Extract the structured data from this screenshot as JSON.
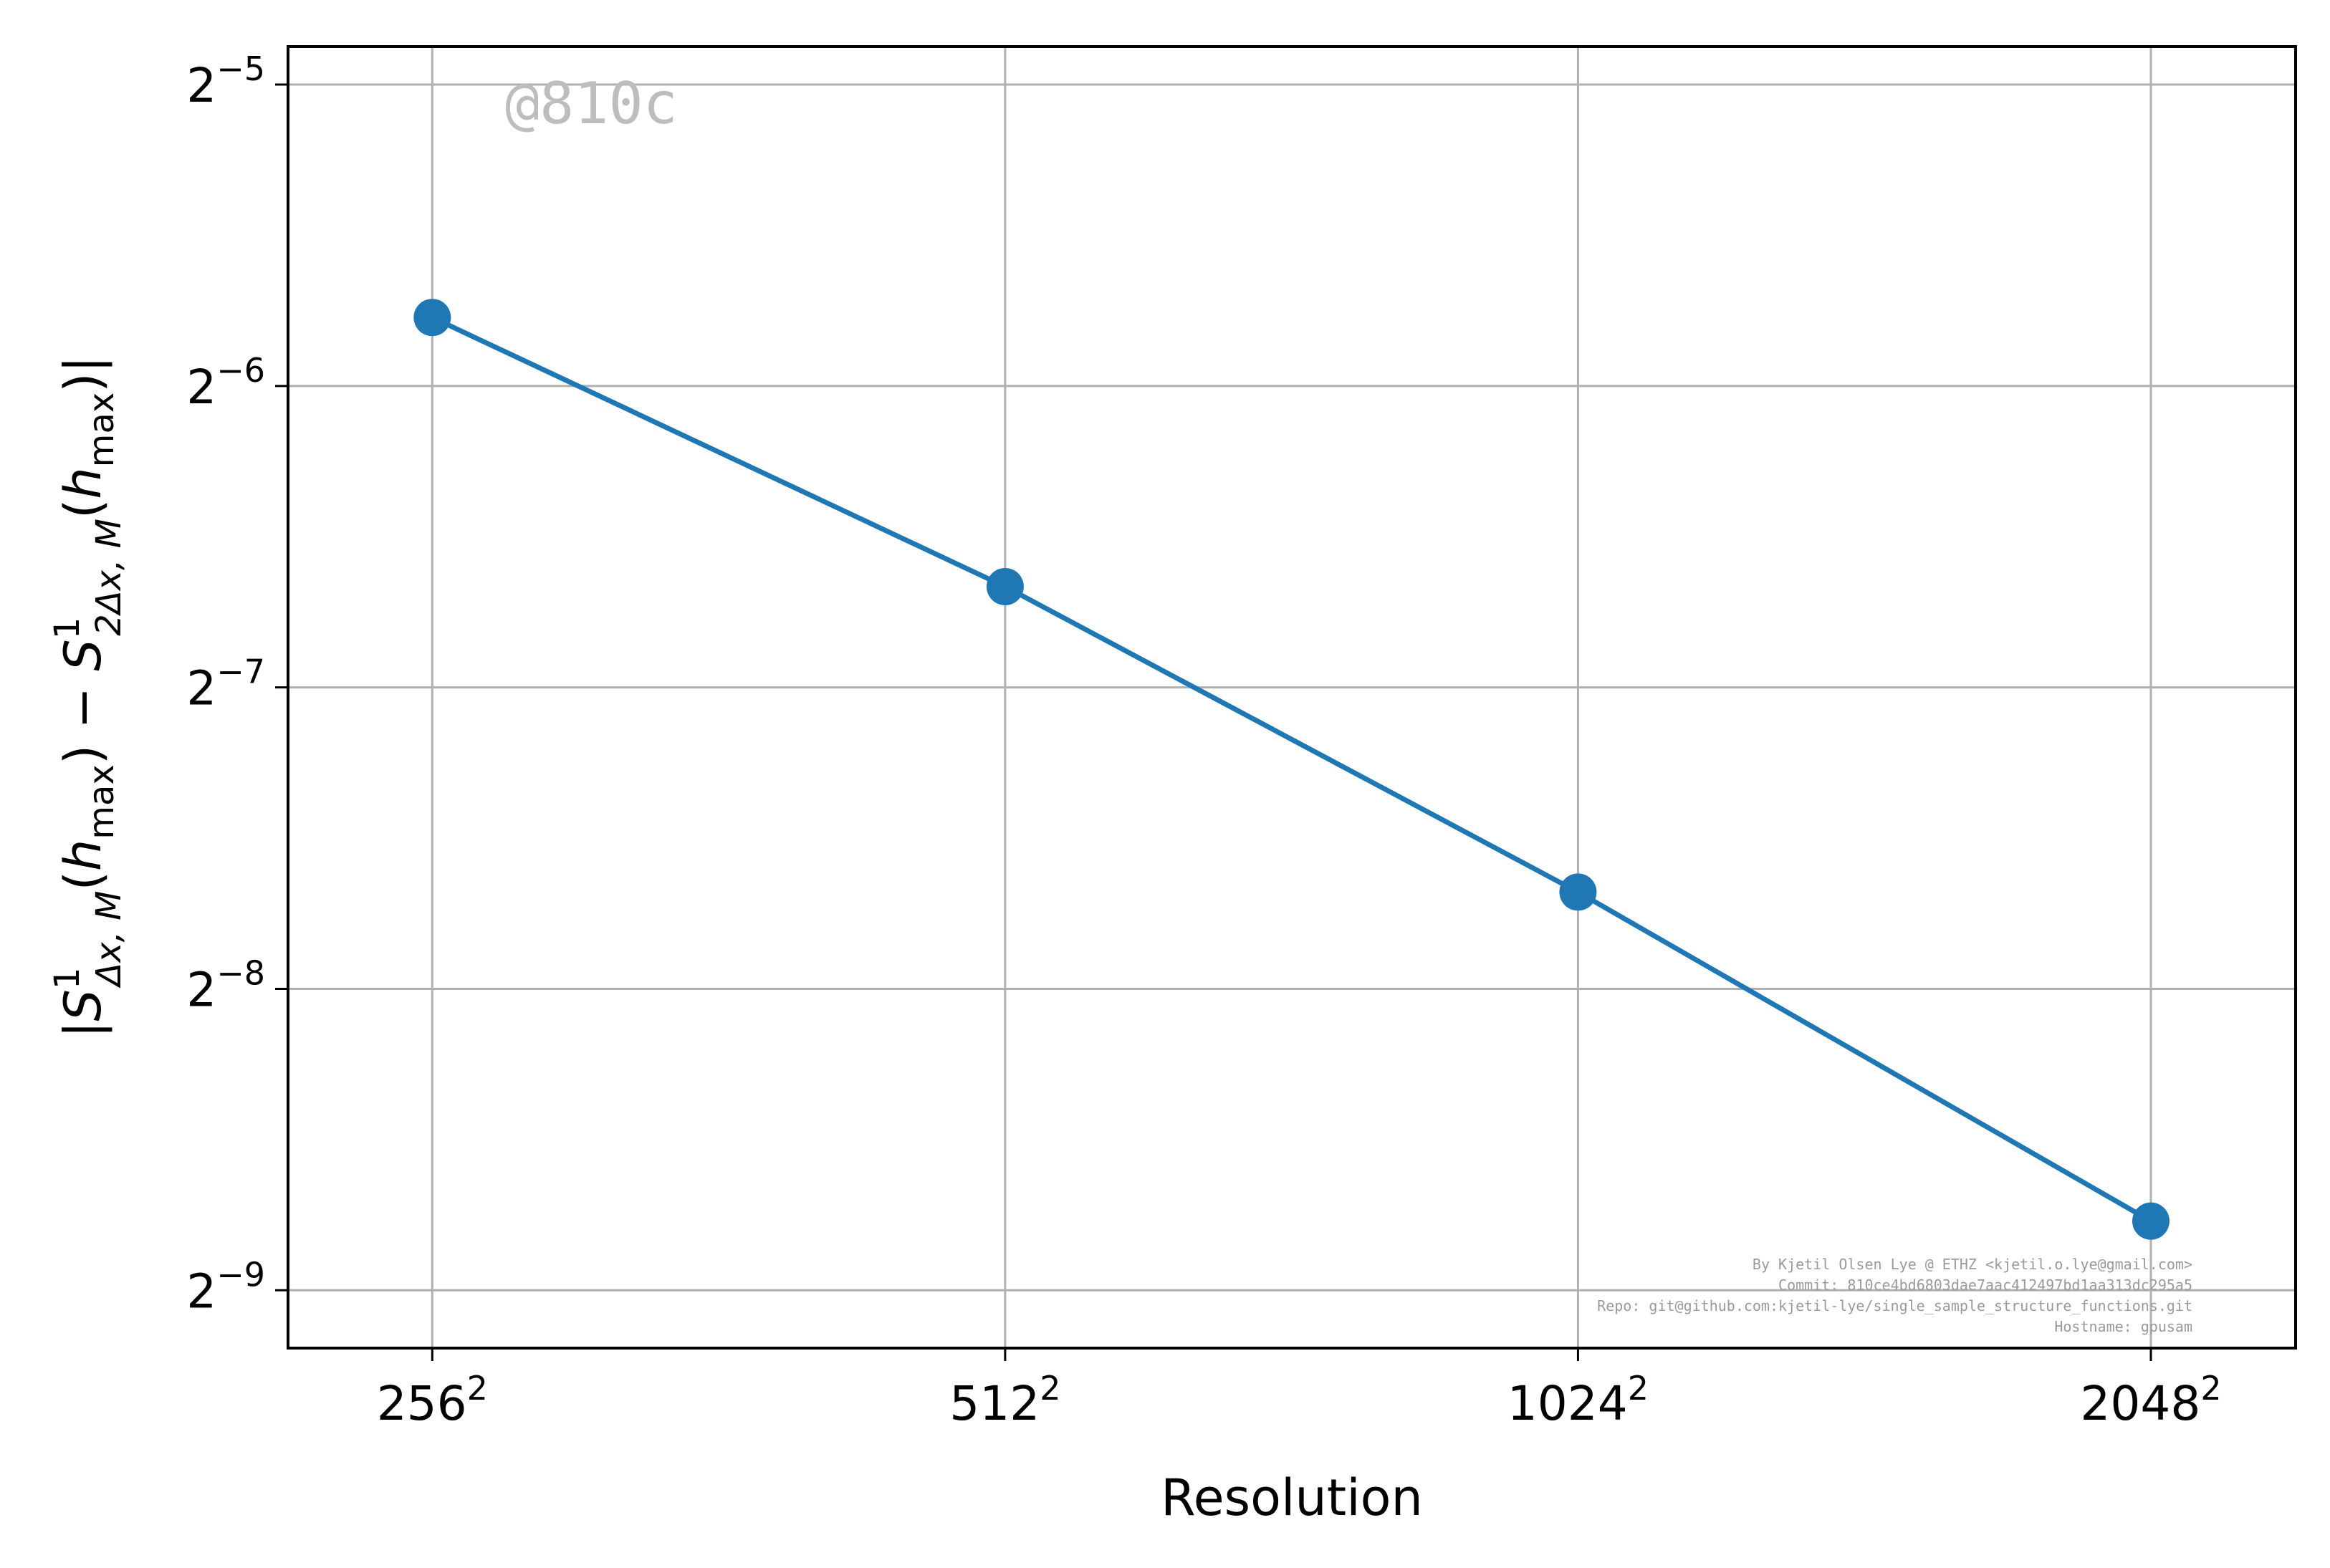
{
  "chart_data": {
    "type": "line",
    "xlabel": "Resolution",
    "ylabel": "|S^1_{Δx,M}(h_max) − S^1_{2Δx,M}(h_max)|",
    "x_scale": "log2",
    "y_scale": "log2",
    "grid": true,
    "x_ticks": [
      {
        "value": 256,
        "base": "256",
        "exp": "2"
      },
      {
        "value": 512,
        "base": "512",
        "exp": "2"
      },
      {
        "value": 1024,
        "base": "1024",
        "exp": "2"
      },
      {
        "value": 2048,
        "base": "2048",
        "exp": "2"
      }
    ],
    "y_ticks": [
      {
        "value": 0.03125,
        "base": "2",
        "exp": "−5"
      },
      {
        "value": 0.015625,
        "base": "2",
        "exp": "−6"
      },
      {
        "value": 0.0078125,
        "base": "2",
        "exp": "−7"
      },
      {
        "value": 0.00390625,
        "base": "2",
        "exp": "−8"
      },
      {
        "value": 0.001953125,
        "base": "2",
        "exp": "−9"
      }
    ],
    "xlim": [
      215,
      2440
    ],
    "ylim": [
      0.00171,
      0.0341
    ],
    "series": [
      {
        "color": "#1f77b4",
        "marker": "circle",
        "x": [
          256,
          512,
          1024,
          2048
        ],
        "y": [
          0.01829,
          0.00985,
          0.00488,
          0.00229
        ]
      }
    ]
  },
  "watermark": "@810c",
  "footer": [
    "By Kjetil Olsen Lye @ ETHZ <kjetil.o.lye@gmail.com>",
    "Commit: 810ce4bd6803dae7aac412497bd1aa313dc295a5",
    "Repo: git@github.com:kjetil-lye/single_sample_structure_functions.git",
    "Hostname: gpusam"
  ]
}
